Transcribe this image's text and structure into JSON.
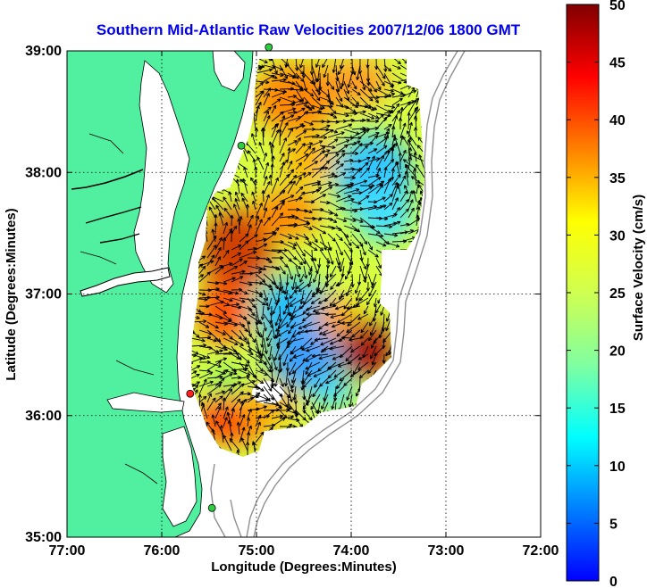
{
  "chart_data": {
    "type": "map",
    "title": "Southern Mid-Atlantic Raw Velocities 2007/12/06 1800 GMT",
    "xlabel": "Longitude (Degrees:Minutes)",
    "ylabel": "Latitude (Degrees:Minutes)",
    "colorbar_label": "Surface Velocity (cm/s)",
    "xlim": [
      -77,
      -72
    ],
    "ylim": [
      35,
      39
    ],
    "x_ticks": [
      {
        "value": -77,
        "label": "77:00"
      },
      {
        "value": -76,
        "label": "76:00"
      },
      {
        "value": -75,
        "label": "75:00"
      },
      {
        "value": -74,
        "label": "74:00"
      },
      {
        "value": -73,
        "label": "73:00"
      },
      {
        "value": -72,
        "label": "72:00"
      }
    ],
    "y_ticks": [
      {
        "value": 35,
        "label": "35:00"
      },
      {
        "value": 36,
        "label": "36:00"
      },
      {
        "value": 37,
        "label": "37:00"
      },
      {
        "value": 38,
        "label": "38:00"
      },
      {
        "value": 39,
        "label": "39:00"
      }
    ],
    "colorbar_ticks": [
      {
        "value": 0,
        "label": "0"
      },
      {
        "value": 5,
        "label": "5"
      },
      {
        "value": 10,
        "label": "10"
      },
      {
        "value": 15,
        "label": "15"
      },
      {
        "value": 20,
        "label": "20"
      },
      {
        "value": 25,
        "label": "25"
      },
      {
        "value": 30,
        "label": "30"
      },
      {
        "value": 35,
        "label": "35"
      },
      {
        "value": 40,
        "label": "40"
      },
      {
        "value": 45,
        "label": "45"
      },
      {
        "value": 50,
        "label": "50"
      }
    ],
    "clim": [
      0,
      50
    ],
    "colormap": "jet",
    "grid": "dotted",
    "land_color": "#50f0a0",
    "stations": [
      {
        "lon": -74.87,
        "lat": 39.03,
        "color": "#2ecc40"
      },
      {
        "lon": -75.16,
        "lat": 38.22,
        "color": "#2ecc40"
      },
      {
        "lon": -75.7,
        "lat": 36.18,
        "color": "#ff2020"
      },
      {
        "lon": -75.47,
        "lat": 35.24,
        "color": "#2ecc40"
      }
    ]
  }
}
